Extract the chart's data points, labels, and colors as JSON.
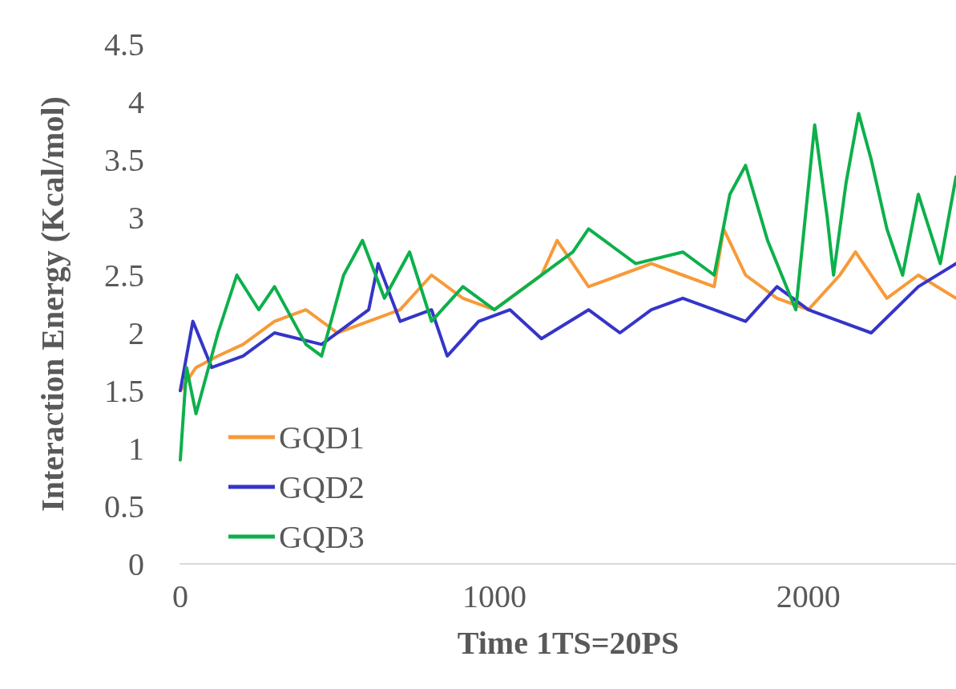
{
  "chart_data": {
    "type": "line",
    "xlabel": "Time 1TS=20PS",
    "ylabel": "Interaction Energy (Kcal/mol)",
    "xlim": [
      0,
      2470
    ],
    "xticks": [
      0,
      1000,
      2000
    ],
    "ylim": [
      0,
      4.5
    ],
    "yticks": [
      0,
      0.5,
      1,
      1.5,
      2,
      2.5,
      3,
      3.5,
      4,
      4.5
    ],
    "grid": false,
    "legend": "bottom left",
    "marker": "none",
    "line_style": "solid",
    "series": [
      {
        "name": "GQD1",
        "color": "#f79a38",
        "x": [
          0,
          50,
          120,
          200,
          300,
          400,
          500,
          600,
          700,
          800,
          900,
          1000,
          1100,
          1150,
          1200,
          1300,
          1400,
          1500,
          1600,
          1700,
          1730,
          1800,
          1900,
          2000,
          2100,
          2150,
          2250,
          2350,
          2470
        ],
        "values": [
          1.5,
          1.7,
          1.8,
          1.9,
          2.1,
          2.2,
          2.0,
          2.1,
          2.2,
          2.5,
          2.3,
          2.2,
          2.4,
          2.5,
          2.8,
          2.4,
          2.5,
          2.6,
          2.5,
          2.4,
          2.9,
          2.5,
          2.3,
          2.2,
          2.5,
          2.7,
          2.3,
          2.5,
          2.3
        ]
      },
      {
        "name": "GQD2",
        "color": "#3535c8",
        "x": [
          0,
          40,
          100,
          200,
          300,
          450,
          600,
          630,
          700,
          800,
          850,
          950,
          1050,
          1150,
          1300,
          1400,
          1500,
          1600,
          1700,
          1800,
          1900,
          2000,
          2100,
          2200,
          2350,
          2470
        ],
        "values": [
          1.5,
          2.1,
          1.7,
          1.8,
          2.0,
          1.9,
          2.2,
          2.6,
          2.1,
          2.2,
          1.8,
          2.1,
          2.2,
          1.95,
          2.2,
          2.0,
          2.2,
          2.3,
          2.2,
          2.1,
          2.4,
          2.2,
          2.1,
          2.0,
          2.4,
          2.6
        ]
      },
      {
        "name": "GQD3",
        "color": "#0db04b",
        "x": [
          0,
          20,
          50,
          120,
          180,
          250,
          300,
          400,
          450,
          520,
          580,
          650,
          730,
          800,
          900,
          1000,
          1100,
          1250,
          1300,
          1450,
          1600,
          1700,
          1750,
          1800,
          1870,
          1960,
          1990,
          2020,
          2060,
          2080,
          2120,
          2160,
          2200,
          2250,
          2300,
          2350,
          2420,
          2470
        ],
        "values": [
          0.9,
          1.7,
          1.3,
          2.0,
          2.5,
          2.2,
          2.4,
          1.9,
          1.8,
          2.5,
          2.8,
          2.3,
          2.7,
          2.1,
          2.4,
          2.2,
          2.4,
          2.7,
          2.9,
          2.6,
          2.7,
          2.5,
          3.2,
          3.45,
          2.8,
          2.2,
          3.0,
          3.8,
          3.0,
          2.5,
          3.3,
          3.9,
          3.5,
          2.9,
          2.5,
          3.2,
          2.6,
          3.35
        ]
      }
    ]
  }
}
